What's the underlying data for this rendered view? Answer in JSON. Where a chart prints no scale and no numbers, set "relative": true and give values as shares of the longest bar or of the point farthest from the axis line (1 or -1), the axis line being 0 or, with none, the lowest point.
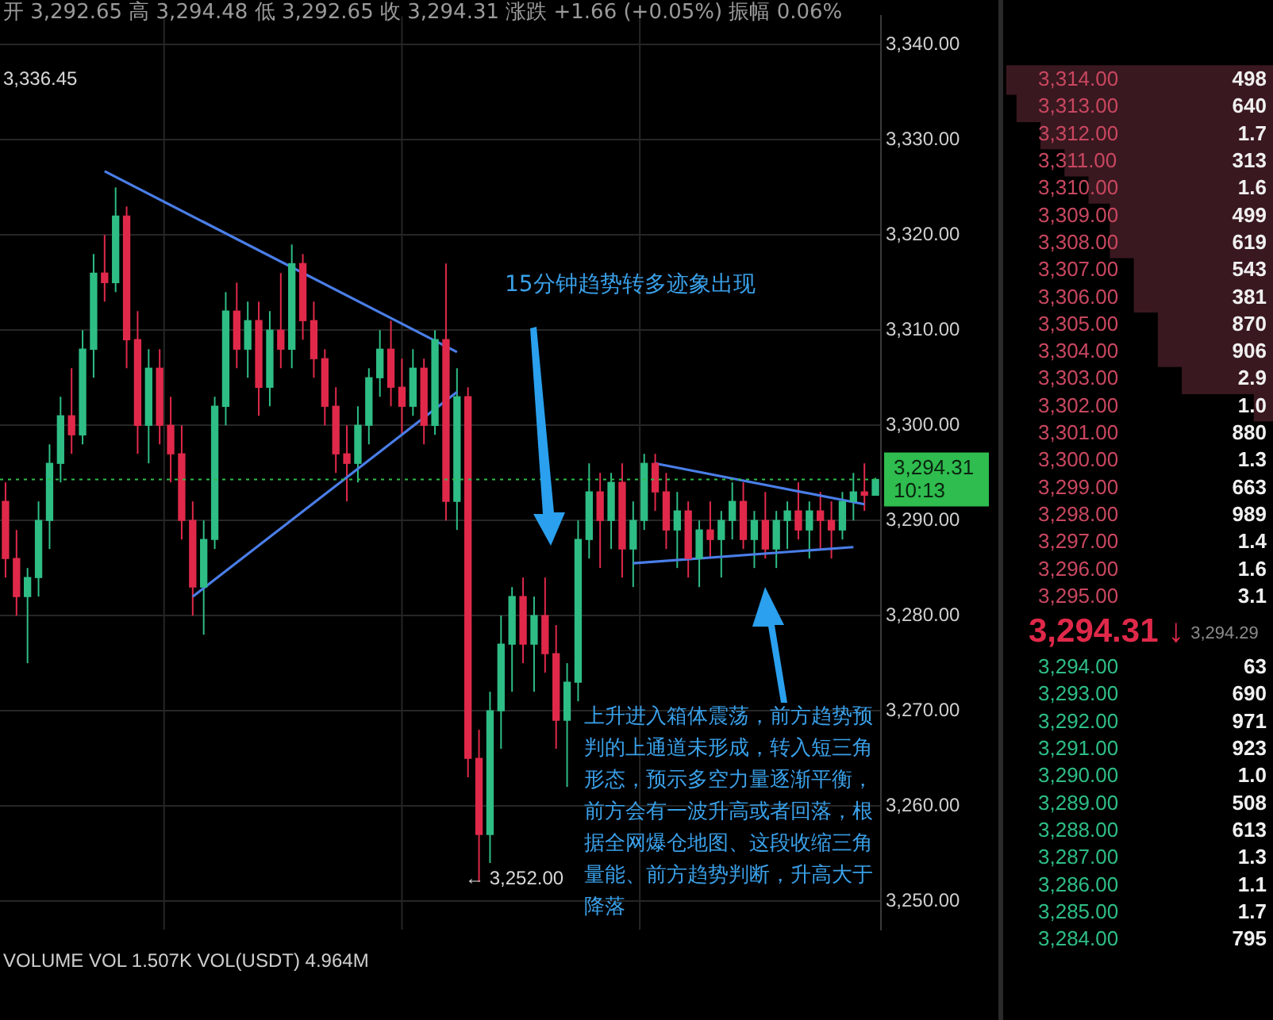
{
  "chart_data": [
    {
      "type": "candlestick",
      "categories": [
        null,
        null,
        null,
        null,
        null,
        null,
        null,
        null,
        null,
        null,
        null,
        null,
        null,
        null,
        null,
        null,
        null,
        null,
        null,
        null,
        null,
        null,
        null,
        null,
        null,
        null,
        null,
        null,
        null,
        null,
        null,
        null,
        null,
        null,
        null,
        null,
        null,
        null,
        null,
        null,
        null,
        null,
        null,
        null,
        null,
        null,
        null,
        null,
        null,
        null,
        null,
        null,
        null,
        null,
        null,
        null,
        null,
        null,
        null,
        null,
        null,
        null,
        null,
        null,
        null,
        null,
        null,
        null,
        null,
        null,
        null,
        null,
        null,
        null,
        null,
        null,
        null,
        null,
        null,
        null
      ],
      "ohlc": [
        [
          3292,
          3294,
          3284,
          3286
        ],
        [
          3286,
          3289,
          3280,
          3282
        ],
        [
          3282,
          3285,
          3275,
          3284
        ],
        [
          3284,
          3292,
          3282,
          3290
        ],
        [
          3290,
          3298,
          3287,
          3296
        ],
        [
          3296,
          3303,
          3294,
          3301
        ],
        [
          3301,
          3306,
          3297,
          3299
        ],
        [
          3299,
          3310,
          3298,
          3308
        ],
        [
          3308,
          3318,
          3305,
          3316
        ],
        [
          3316,
          3320,
          3313,
          3315
        ],
        [
          3315,
          3325,
          3314,
          3322
        ],
        [
          3322,
          3323,
          3306,
          3309
        ],
        [
          3309,
          3312,
          3297,
          3300
        ],
        [
          3300,
          3308,
          3296,
          3306
        ],
        [
          3306,
          3308,
          3298,
          3300
        ],
        [
          3300,
          3303,
          3294,
          3297
        ],
        [
          3297,
          3300,
          3288,
          3290
        ],
        [
          3290,
          3292,
          3280,
          3283
        ],
        [
          3283,
          3290,
          3278,
          3288
        ],
        [
          3288,
          3303,
          3287,
          3302
        ],
        [
          3302,
          3314,
          3300,
          3312
        ],
        [
          3312,
          3315,
          3306,
          3308
        ],
        [
          3308,
          3313,
          3305,
          3311
        ],
        [
          3311,
          3313,
          3301,
          3304
        ],
        [
          3304,
          3312,
          3302,
          3310
        ],
        [
          3310,
          3316,
          3306,
          3308
        ],
        [
          3308,
          3319,
          3306,
          3317
        ],
        [
          3317,
          3318,
          3309,
          3311
        ],
        [
          3311,
          3313,
          3305,
          3307
        ],
        [
          3307,
          3308,
          3300,
          3302
        ],
        [
          3302,
          3304,
          3295,
          3297
        ],
        [
          3297,
          3300,
          3292,
          3296
        ],
        [
          3296,
          3302,
          3294,
          3300
        ],
        [
          3300,
          3306,
          3298,
          3305
        ],
        [
          3305,
          3310,
          3303,
          3308
        ],
        [
          3308,
          3311,
          3302,
          3304
        ],
        [
          3304,
          3307,
          3299,
          3302
        ],
        [
          3302,
          3308,
          3301,
          3306
        ],
        [
          3306,
          3307,
          3298,
          3300
        ],
        [
          3300,
          3310,
          3299,
          3309
        ],
        [
          3309,
          3317,
          3290,
          3292
        ],
        [
          3292,
          3306,
          3289,
          3303
        ],
        [
          3303,
          3304,
          3263,
          3265
        ],
        [
          3265,
          3268,
          3252,
          3257
        ],
        [
          3257,
          3272,
          3254,
          3270
        ],
        [
          3270,
          3280,
          3266,
          3277
        ],
        [
          3277,
          3283,
          3272,
          3282
        ],
        [
          3282,
          3284,
          3275,
          3277
        ],
        [
          3277,
          3282,
          3272,
          3280
        ],
        [
          3280,
          3284,
          3274,
          3276
        ],
        [
          3276,
          3279,
          3266,
          3269
        ],
        [
          3269,
          3275,
          3262,
          3273
        ],
        [
          3273,
          3290,
          3271,
          3288
        ],
        [
          3288,
          3296,
          3286,
          3293
        ],
        [
          3293,
          3295,
          3285,
          3290
        ],
        [
          3290,
          3295,
          3287,
          3294
        ],
        [
          3294,
          3296,
          3284,
          3287
        ],
        [
          3287,
          3292,
          3283,
          3290
        ],
        [
          3290,
          3297,
          3289,
          3296
        ],
        [
          3296,
          3297,
          3291,
          3293
        ],
        [
          3293,
          3295,
          3287,
          3289
        ],
        [
          3289,
          3293,
          3285,
          3291
        ],
        [
          3291,
          3292,
          3284,
          3286
        ],
        [
          3286,
          3290,
          3283,
          3289
        ],
        [
          3289,
          3292,
          3286,
          3288
        ],
        [
          3288,
          3291,
          3284,
          3290
        ],
        [
          3290,
          3294,
          3288,
          3292
        ],
        [
          3292,
          3294,
          3287,
          3288
        ],
        [
          3288,
          3291,
          3285,
          3290
        ],
        [
          3290,
          3293,
          3286,
          3287
        ],
        [
          3287,
          3291,
          3285,
          3290
        ],
        [
          3290,
          3292,
          3287,
          3291
        ],
        [
          3291,
          3294,
          3288,
          3289
        ],
        [
          3289,
          3292,
          3286,
          3291
        ],
        [
          3291,
          3293,
          3287,
          3290
        ],
        [
          3290,
          3292,
          3286,
          3289
        ],
        [
          3289,
          3293,
          3288,
          3292
        ],
        [
          3292,
          3295,
          3290,
          3293
        ],
        [
          3293,
          3296,
          3291,
          3292.65
        ],
        [
          3292.65,
          3294.48,
          3292.65,
          3294.31
        ]
      ],
      "series": [
        {
          "type": "line",
          "color": "#4a7ee8",
          "values": [
            null,
            null,
            null,
            null,
            null,
            null,
            null,
            null,
            null,
            3326.7,
            null,
            null,
            null,
            null,
            null,
            null,
            null,
            null,
            null,
            null,
            null,
            null,
            null,
            null,
            null,
            null,
            null,
            null,
            null,
            null,
            null,
            null,
            null,
            null,
            null,
            null,
            null,
            null,
            null,
            null,
            null,
            3307.7,
            null,
            null,
            null,
            null,
            null,
            null,
            null,
            null,
            null,
            null,
            null,
            null,
            null,
            null,
            null,
            null,
            null,
            null,
            null,
            null,
            null,
            null,
            null,
            null,
            null,
            null,
            null,
            null,
            null,
            null,
            null,
            null,
            null,
            null,
            null,
            null,
            null,
            null
          ]
        },
        {
          "type": "line",
          "color": "#4a7ee8",
          "values": [
            null,
            null,
            null,
            null,
            null,
            null,
            null,
            null,
            null,
            null,
            null,
            null,
            null,
            null,
            null,
            null,
            null,
            3282,
            null,
            null,
            null,
            null,
            null,
            null,
            null,
            null,
            null,
            null,
            null,
            null,
            null,
            null,
            null,
            null,
            null,
            null,
            null,
            null,
            null,
            null,
            null,
            3303.5,
            null,
            null,
            null,
            null,
            null,
            null,
            null,
            null,
            null,
            null,
            null,
            null,
            null,
            null,
            null,
            null,
            null,
            null,
            null,
            null,
            null,
            null,
            null,
            null,
            null,
            null,
            null,
            null,
            null,
            null,
            null,
            null,
            null,
            null,
            null,
            null,
            null,
            null
          ]
        },
        {
          "type": "line",
          "color": "#4a7ee8",
          "values": [
            null,
            null,
            null,
            null,
            null,
            null,
            null,
            null,
            null,
            null,
            null,
            null,
            null,
            null,
            null,
            null,
            null,
            null,
            null,
            null,
            null,
            null,
            null,
            null,
            null,
            null,
            null,
            null,
            null,
            null,
            null,
            null,
            null,
            null,
            null,
            null,
            null,
            null,
            null,
            null,
            null,
            null,
            null,
            null,
            null,
            null,
            null,
            null,
            null,
            null,
            null,
            null,
            null,
            null,
            null,
            null,
            null,
            null,
            null,
            3296,
            null,
            null,
            null,
            null,
            null,
            null,
            null,
            null,
            null,
            null,
            null,
            null,
            null,
            null,
            null,
            null,
            null,
            null,
            3291.7,
            null
          ]
        },
        {
          "type": "line",
          "color": "#4a7ee8",
          "values": [
            null,
            null,
            null,
            null,
            null,
            null,
            null,
            null,
            null,
            null,
            null,
            null,
            null,
            null,
            null,
            null,
            null,
            null,
            null,
            null,
            null,
            null,
            null,
            null,
            null,
            null,
            null,
            null,
            null,
            null,
            null,
            null,
            null,
            null,
            null,
            null,
            null,
            null,
            null,
            null,
            null,
            null,
            null,
            null,
            null,
            null,
            null,
            null,
            null,
            null,
            null,
            null,
            null,
            null,
            null,
            null,
            null,
            3285.5,
            null,
            null,
            null,
            null,
            null,
            null,
            null,
            null,
            null,
            null,
            null,
            null,
            null,
            null,
            null,
            null,
            null,
            null,
            null,
            3287.2,
            null,
            null
          ]
        }
      ],
      "ylim": [
        3247,
        3343
      ],
      "yticks": [
        {
          "value": 3250,
          "label": "3,250.00"
        },
        {
          "value": 3260,
          "label": "3,260.00"
        },
        {
          "value": 3270,
          "label": "3,270.00"
        },
        {
          "value": 3280,
          "label": "3,280.00"
        },
        {
          "value": 3290,
          "label": "3,290.00"
        },
        {
          "value": 3300,
          "label": "3,300.00"
        },
        {
          "value": 3310,
          "label": "3,310.00"
        },
        {
          "value": 3320,
          "label": "3,320.00"
        },
        {
          "value": 3330,
          "label": "3,330.00"
        },
        {
          "value": 3340,
          "label": "3,340.00"
        }
      ],
      "grid": true,
      "ref_lines": [
        {
          "axis": "y",
          "value": 3294.31,
          "label": "3,294.31",
          "color": "#2ebd4e",
          "line_style": "dotted"
        }
      ],
      "annotations": [
        "开 3,292.65 高 3,294.48 低 3,292.65 收 3,294.31 涨跌 +1.66 (+0.05%) 振幅 0.06%",
        "15分钟趋势转多迹象出现",
        "上升进入箱体震荡，前方趋势预判的上通道未形成，转入短三角形态，预示多空力量逐渐平衡，前方会有一波升高或者回落，根据全网爆仓地图、这段收缩三角量能、前方趋势判断，升高大于降落",
        "VOLUME VOL 1.507K VOL(USDT) 4.964M",
        "3,336.45",
        "← 3,252.00",
        "10:13"
      ]
    },
    {
      "type": "bar",
      "orientation": "horizontal",
      "relative": true,
      "categories": [
        "3,314.00",
        "3,313.00",
        "3,312.00",
        "3,311.00",
        "3,310.00",
        "3,309.00",
        "3,308.00",
        "3,307.00",
        "3,306.00",
        "3,305.00",
        "3,304.00",
        "3,303.00",
        "3,302.00",
        "3,301.00",
        "3,300.00",
        "3,299.00",
        "3,298.00",
        "3,297.00",
        "3,296.00",
        "3,295.00",
        "3,294.00",
        "3,293.00",
        "3,292.00",
        "3,291.00",
        "3,290.00",
        "3,289.00",
        "3,288.00",
        "3,287.00",
        "3,286.00",
        "3,285.00",
        "3,284.00"
      ],
      "series": [
        {
          "color": "#3a1820",
          "values": [
            1,
            0.96,
            0.87,
            0.78,
            0.69,
            0.61,
            0.61,
            0.52,
            0.52,
            0.43,
            0.43,
            0.34,
            0.07,
            0,
            0,
            0,
            0,
            0,
            0,
            0,
            null,
            null,
            null,
            null,
            null,
            null,
            null,
            null,
            null,
            null,
            null
          ]
        },
        {
          "values": [
            null,
            null,
            null,
            null,
            null,
            null,
            null,
            null,
            null,
            null,
            null,
            null,
            null,
            null,
            null,
            null,
            null,
            null,
            null,
            null,
            0,
            0,
            0,
            0,
            0,
            0,
            0,
            0,
            0,
            0,
            0
          ]
        }
      ],
      "annotations": [
        "498",
        "640",
        "1.7",
        "313",
        "1.6",
        "499",
        "619",
        "543",
        "381",
        "870",
        "906",
        "2.9",
        "1.0",
        "880",
        "1.3",
        "663",
        "989",
        "1.4",
        "1.6",
        "3.1",
        "63",
        "690",
        "971",
        "923",
        "1.0",
        "508",
        "613",
        "1.3",
        "1.1",
        "1.7",
        "795",
        "3,294.31 ↓",
        "3,294.29"
      ]
    }
  ]
}
